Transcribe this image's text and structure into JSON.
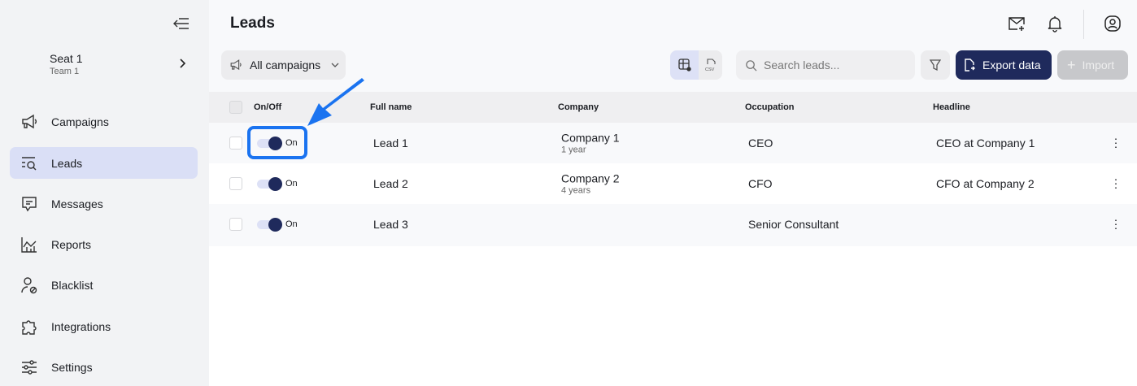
{
  "sidebar": {
    "seat": {
      "name": "Seat 1",
      "team": "Team 1"
    },
    "items": [
      {
        "label": "Campaigns",
        "icon": "megaphone-icon"
      },
      {
        "label": "Leads",
        "icon": "leads-search-icon",
        "active": true
      },
      {
        "label": "Messages",
        "icon": "message-icon"
      },
      {
        "label": "Reports",
        "icon": "chart-icon"
      },
      {
        "label": "Blacklist",
        "icon": "user-block-icon"
      },
      {
        "label": "Integrations",
        "icon": "puzzle-icon"
      },
      {
        "label": "Settings",
        "icon": "sliders-icon"
      }
    ]
  },
  "header": {
    "title": "Leads"
  },
  "toolbar": {
    "campaign_filter": "All campaigns",
    "search_placeholder": "Search leads...",
    "export_label": "Export data",
    "import_label": "Import",
    "csv_label": "CSV"
  },
  "table": {
    "columns": [
      "On/Off",
      "Full name",
      "Company",
      "Occupation",
      "Headline"
    ],
    "rows": [
      {
        "toggle": "On",
        "name": "Lead 1",
        "company": "Company 1",
        "tenure": "1 year",
        "occupation": "CEO",
        "headline": "CEO at Company 1"
      },
      {
        "toggle": "On",
        "name": "Lead 2",
        "company": "Company 2",
        "tenure": "4 years",
        "occupation": "CFO",
        "headline": "CFO at Company 2"
      },
      {
        "toggle": "On",
        "name": "Lead 3",
        "company": "",
        "tenure": "",
        "occupation": "Senior Consultant",
        "headline": ""
      }
    ]
  },
  "colors": {
    "accent": "#1f2a5c",
    "highlight": "#1a73f0",
    "active_nav": "#dadff6"
  }
}
